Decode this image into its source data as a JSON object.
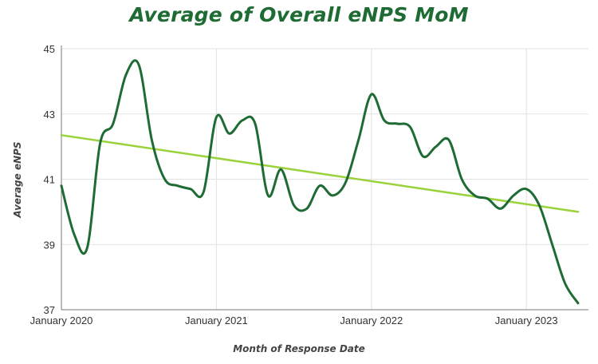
{
  "chart_data": {
    "type": "line",
    "title": "Average of Overall eNPS MoM",
    "xlabel": "Month of Response Date",
    "ylabel": "Average eNPS",
    "ylim": [
      37,
      45
    ],
    "yticks": [
      37,
      39,
      41,
      43,
      45
    ],
    "xticks": [
      "January 2020",
      "January 2021",
      "January 2022",
      "January 2023"
    ],
    "x": [
      "Jan 2020",
      "Feb 2020",
      "Mar 2020",
      "Apr 2020",
      "May 2020",
      "Jun 2020",
      "Jul 2020",
      "Aug 2020",
      "Sep 2020",
      "Oct 2020",
      "Nov 2020",
      "Dec 2020",
      "Jan 2021",
      "Feb 2021",
      "Mar 2021",
      "Apr 2021",
      "May 2021",
      "Jun 2021",
      "Jul 2021",
      "Aug 2021",
      "Sep 2021",
      "Oct 2021",
      "Nov 2021",
      "Dec 2021",
      "Jan 2022",
      "Feb 2022",
      "Mar 2022",
      "Apr 2022",
      "May 2022",
      "Jun 2022",
      "Jul 2022",
      "Aug 2022",
      "Sep 2022",
      "Oct 2022",
      "Nov 2022",
      "Dec 2022",
      "Jan 2023",
      "Feb 2023",
      "Mar 2023",
      "Apr 2023",
      "May 2023"
    ],
    "series": [
      {
        "name": "Average of Overall eNPS",
        "color": "#1e6b34",
        "values": [
          40.8,
          39.3,
          38.9,
          42.1,
          42.7,
          44.2,
          44.5,
          42.2,
          41.0,
          40.8,
          40.7,
          40.6,
          42.9,
          42.4,
          42.8,
          42.7,
          40.5,
          41.3,
          40.2,
          40.1,
          40.8,
          40.5,
          40.9,
          42.2,
          43.6,
          42.8,
          42.7,
          42.6,
          41.7,
          42.0,
          42.2,
          41.0,
          40.5,
          40.4,
          40.1,
          40.5,
          40.7,
          40.2,
          39.0,
          37.8,
          37.2
        ]
      },
      {
        "name": "Trend",
        "color": "#9ad23c",
        "trend": true,
        "start": 42.35,
        "end": 40.0
      }
    ],
    "grid": true
  }
}
